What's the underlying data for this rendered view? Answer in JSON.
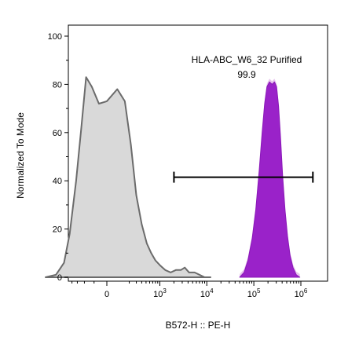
{
  "chart_data": {
    "type": "area",
    "xlabel": "B572-H :: PE-H",
    "ylabel": "Normalized To Mode",
    "ylim": [
      0,
      100
    ],
    "yticks": [
      0,
      20,
      40,
      60,
      80,
      100
    ],
    "xticks": [
      {
        "base": "",
        "exp": "",
        "text": "0"
      },
      {
        "base": "10",
        "exp": "3",
        "text": ""
      },
      {
        "base": "10",
        "exp": "4",
        "text": ""
      },
      {
        "base": "10",
        "exp": "5",
        "text": ""
      },
      {
        "base": "10",
        "exp": "6",
        "text": ""
      }
    ],
    "x_scale": "biexponential",
    "grid": false,
    "series": [
      {
        "color": "#d9d9d9",
        "stroke": "#6b6b6b",
        "points": [
          [
            -1500,
            0
          ],
          [
            -900,
            1
          ],
          [
            -600,
            6
          ],
          [
            -450,
            18
          ],
          [
            -320,
            40
          ],
          [
            -240,
            62
          ],
          [
            -180,
            83
          ],
          [
            -120,
            79
          ],
          [
            -60,
            72
          ],
          [
            0,
            73
          ],
          [
            80,
            78
          ],
          [
            150,
            73
          ],
          [
            220,
            55
          ],
          [
            300,
            34
          ],
          [
            400,
            22
          ],
          [
            520,
            14
          ],
          [
            650,
            10
          ],
          [
            800,
            7
          ],
          [
            1000,
            5
          ],
          [
            1300,
            3
          ],
          [
            1700,
            2
          ],
          [
            2200,
            3
          ],
          [
            2800,
            3
          ],
          [
            3400,
            4
          ],
          [
            4200,
            2
          ],
          [
            5500,
            2
          ],
          [
            7000,
            1
          ],
          [
            9000,
            0
          ],
          [
            12000,
            0
          ]
        ]
      },
      {
        "color": "#9a22c9",
        "stroke": "#8a18b8",
        "highlight": "#e8c4ef",
        "label": "HLA-ABC_W6_32 Purified",
        "percent": "99.9",
        "gate": [
          2000,
          1800000
        ],
        "gate_y": 41.5,
        "points": [
          [
            50000,
            0
          ],
          [
            62000,
            2
          ],
          [
            75000,
            7
          ],
          [
            92000,
            16
          ],
          [
            110000,
            28
          ],
          [
            130000,
            44
          ],
          [
            150000,
            60
          ],
          [
            170000,
            72
          ],
          [
            190000,
            79
          ],
          [
            215000,
            81
          ],
          [
            245000,
            80
          ],
          [
            275000,
            81
          ],
          [
            305000,
            79
          ],
          [
            335000,
            71
          ],
          [
            370000,
            58
          ],
          [
            410000,
            42
          ],
          [
            460000,
            28
          ],
          [
            520000,
            17
          ],
          [
            590000,
            9
          ],
          [
            680000,
            4
          ],
          [
            800000,
            1
          ],
          [
            950000,
            0
          ]
        ]
      }
    ]
  }
}
